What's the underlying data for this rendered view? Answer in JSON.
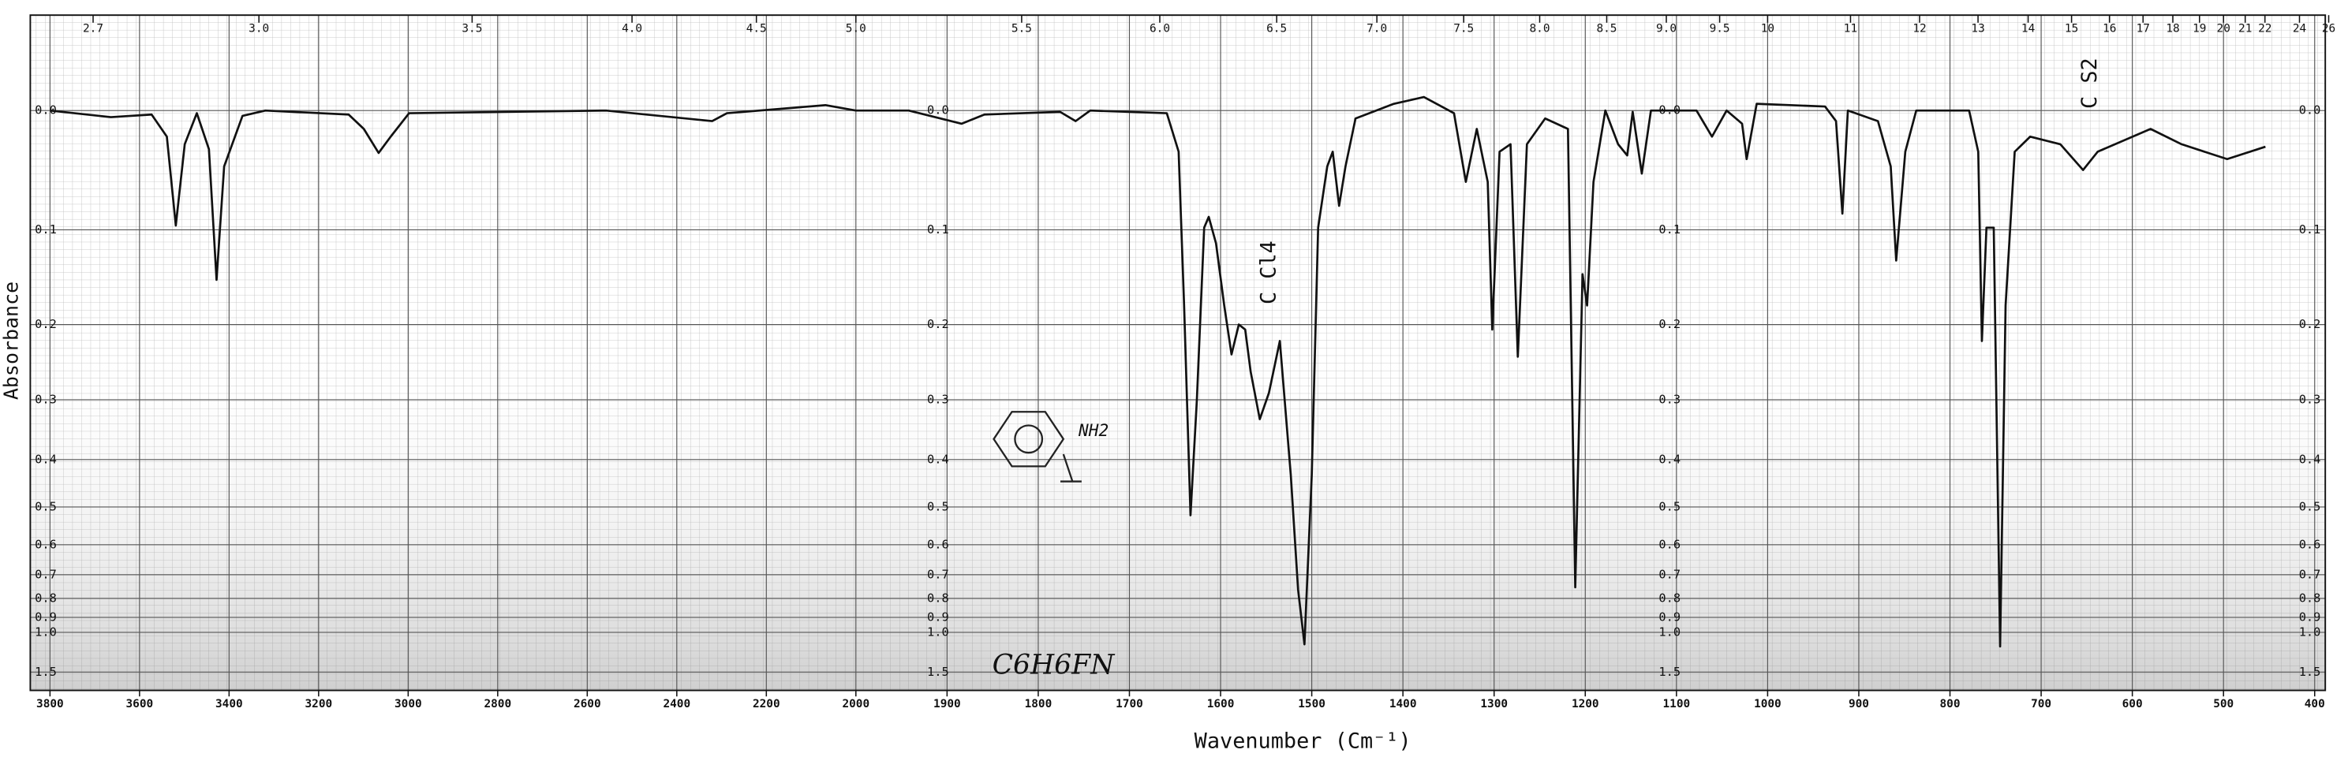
{
  "chart_data": {
    "type": "line",
    "x_label": "Wavenumber (Cm⁻¹)",
    "y_label": "Absorbance",
    "color": "#111111",
    "grid": true,
    "y_scale": "absorbance-on-transmittance-grid",
    "x_scale_break": 2000,
    "xlim": [
      3800,
      400
    ],
    "xticks": [
      3800,
      3600,
      3400,
      3200,
      3000,
      2800,
      2600,
      2400,
      2200,
      2000,
      1900,
      1800,
      1700,
      1600,
      1500,
      1400,
      1300,
      1200,
      1100,
      1000,
      900,
      800,
      700,
      600,
      500,
      400
    ],
    "top_ticks": [
      2.7,
      {
        "value": 3,
        "label": "3.0"
      },
      3.5,
      {
        "value": 4,
        "label": "4.0"
      },
      4.5,
      {
        "value": 5,
        "label": "5.0"
      },
      5.5,
      {
        "value": 6,
        "label": "6.0"
      },
      6.5,
      {
        "value": 7,
        "label": "7.0"
      },
      7.5,
      {
        "value": 8,
        "label": "8.0"
      },
      8.5,
      {
        "value": 9,
        "label": "9.0"
      },
      9.5,
      10,
      11,
      12,
      13,
      14,
      15,
      16,
      17,
      18,
      19,
      20,
      21,
      22,
      24,
      26
    ],
    "yticks": [
      {
        "value": 0,
        "label": "0.0"
      },
      0.1,
      0.2,
      0.3,
      0.4,
      0.5,
      0.6,
      0.7,
      0.8,
      0.9,
      {
        "value": 1,
        "label": "1.0"
      },
      1.5
    ],
    "x": [
      3800,
      3664,
      3573,
      3539,
      3519,
      3499,
      3472,
      3445,
      3428,
      3411,
      3370,
      3319,
      3133,
      3099,
      3066,
      3039,
      2998,
      2558,
      2321,
      2288,
      2068,
      2000,
      1942,
      1884,
      1859,
      1776,
      1759,
      1743,
      1659,
      1646,
      1640,
      1633,
      1626,
      1618,
      1613,
      1605,
      1596,
      1588,
      1580,
      1573,
      1567,
      1557,
      1547,
      1535,
      1523,
      1515,
      1508,
      1500,
      1493,
      1483,
      1477,
      1470,
      1463,
      1452,
      1410,
      1377,
      1344,
      1331,
      1319,
      1307,
      1302,
      1294,
      1282,
      1274,
      1264,
      1244,
      1219,
      1211,
      1203,
      1198,
      1191,
      1178,
      1164,
      1154,
      1148,
      1138,
      1128,
      1078,
      1061,
      1045,
      1028,
      1023,
      1012,
      937,
      925,
      918,
      912,
      879,
      865,
      859,
      849,
      837,
      779,
      769,
      765,
      760,
      752,
      745,
      739,
      729,
      712,
      679,
      654,
      638,
      580,
      546,
      496,
      454
    ],
    "values": [
      0,
      0.005,
      0.003,
      0.02,
      0.096,
      0.026,
      0.002,
      0.03,
      0.15,
      0.044,
      0.004,
      0,
      0.003,
      0.014,
      0.033,
      0.02,
      0.002,
      0,
      0.008,
      0.002,
      -0.004,
      0,
      0,
      0.01,
      0.003,
      0.001,
      0.008,
      0,
      0.002,
      0.032,
      0.178,
      0.52,
      0.3,
      0.098,
      0.088,
      0.113,
      0.178,
      0.237,
      0.2,
      0.206,
      0.26,
      0.33,
      0.29,
      0.22,
      0.43,
      0.76,
      1.1,
      0.43,
      0.098,
      0.044,
      0.032,
      0.078,
      0.044,
      0.006,
      -0.005,
      -0.01,
      0.002,
      0.057,
      0.014,
      0.057,
      0.206,
      0.032,
      0.026,
      0.24,
      0.026,
      0.006,
      0.014,
      0.75,
      0.144,
      0.178,
      0.057,
      0,
      0.026,
      0.035,
      0.001,
      0.05,
      0,
      0,
      0.02,
      0,
      0.01,
      0.038,
      -0.005,
      -0.003,
      0.008,
      0.085,
      0,
      0.008,
      0.044,
      0.13,
      0.032,
      0,
      0,
      0.032,
      0.22,
      0.098,
      0.098,
      1.12,
      0.178,
      0.032,
      0.02,
      0.026,
      0.047,
      0.032,
      0.014,
      0.026,
      0.038,
      0.028
    ],
    "annotations": [
      "C Cl4",
      "C S2",
      "C6H6FN",
      "NH2"
    ]
  }
}
